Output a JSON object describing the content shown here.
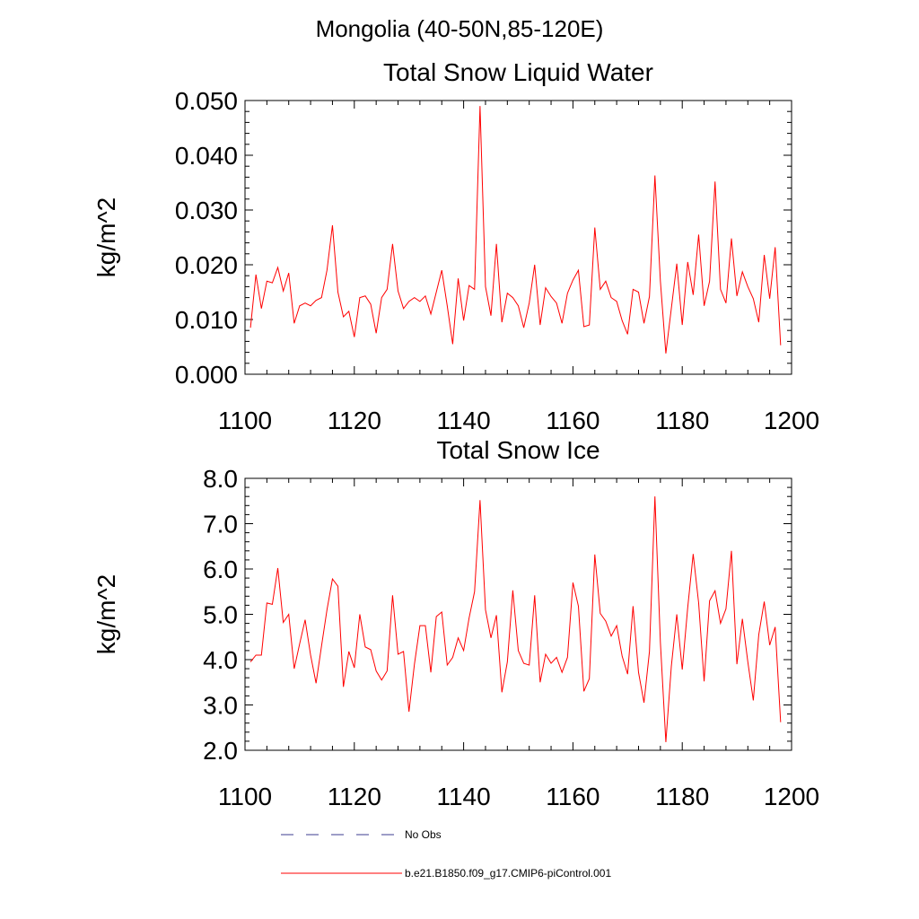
{
  "figure": {
    "main_title": "Mongolia (40-50N,85-120E)"
  },
  "legend": {
    "entries": [
      {
        "label": "No Obs",
        "color": "#3b3b8f",
        "style": "dashed"
      },
      {
        "label": "b.e21.B1850.f09_g17.CMIP6-piControl.001",
        "color": "#ff0000",
        "style": "solid"
      }
    ]
  },
  "chart_data": [
    {
      "type": "line",
      "title": "Total Snow Liquid Water",
      "xlabel": "",
      "ylabel": "kg/m^2",
      "xlim": [
        1100,
        1200
      ],
      "ylim": [
        0.0,
        0.05
      ],
      "xticks": [
        1100,
        1120,
        1140,
        1160,
        1180,
        1200
      ],
      "xtick_labels": [
        "1100",
        "1120",
        "1140",
        "1160",
        "1180",
        "1200"
      ],
      "yticks": [
        0.0,
        0.01,
        0.02,
        0.03,
        0.04,
        0.05
      ],
      "ytick_labels": [
        "0.000",
        "0.010",
        "0.020",
        "0.030",
        "0.040",
        "0.050"
      ],
      "series": [
        {
          "name": "b.e21.B1850.f09_g17.CMIP6-piControl.001",
          "color": "#ff0000",
          "x_start": 1101,
          "values": [
            0.0085,
            0.0182,
            0.012,
            0.017,
            0.0167,
            0.0195,
            0.0152,
            0.0185,
            0.0093,
            0.0125,
            0.013,
            0.0125,
            0.0135,
            0.014,
            0.019,
            0.0272,
            0.015,
            0.0105,
            0.0115,
            0.0068,
            0.014,
            0.0143,
            0.0128,
            0.0075,
            0.014,
            0.0155,
            0.0238,
            0.0152,
            0.012,
            0.0133,
            0.014,
            0.0133,
            0.0143,
            0.011,
            0.015,
            0.019,
            0.0125,
            0.0055,
            0.0175,
            0.0098,
            0.0162,
            0.0155,
            0.049,
            0.016,
            0.0107,
            0.0238,
            0.0095,
            0.0148,
            0.014,
            0.0125,
            0.0085,
            0.013,
            0.02,
            0.009,
            0.0158,
            0.0142,
            0.013,
            0.0093,
            0.0148,
            0.0172,
            0.019,
            0.0087,
            0.009,
            0.0268,
            0.0155,
            0.017,
            0.014,
            0.0133,
            0.0098,
            0.0073,
            0.0155,
            0.015,
            0.0093,
            0.0142,
            0.0363,
            0.017,
            0.0038,
            0.012,
            0.0202,
            0.009,
            0.0205,
            0.0145,
            0.0255,
            0.0125,
            0.017,
            0.0352,
            0.0155,
            0.013,
            0.0248,
            0.0143,
            0.0187,
            0.016,
            0.0138,
            0.0095,
            0.0218,
            0.0138,
            0.0232,
            0.0053
          ]
        }
      ]
    },
    {
      "type": "line",
      "title": "Total Snow Ice",
      "xlabel": "",
      "ylabel": "kg/m^2",
      "xlim": [
        1100,
        1200
      ],
      "ylim": [
        2.0,
        8.0
      ],
      "xticks": [
        1100,
        1120,
        1140,
        1160,
        1180,
        1200
      ],
      "xtick_labels": [
        "1100",
        "1120",
        "1140",
        "1160",
        "1180",
        "1200"
      ],
      "yticks": [
        2.0,
        3.0,
        4.0,
        5.0,
        6.0,
        7.0,
        8.0
      ],
      "ytick_labels": [
        "2.0",
        "3.0",
        "4.0",
        "5.0",
        "6.0",
        "7.0",
        "8.0"
      ],
      "series": [
        {
          "name": "b.e21.B1850.f09_g17.CMIP6-piControl.001",
          "color": "#ff0000",
          "x_start": 1101,
          "values": [
            3.95,
            4.1,
            4.1,
            5.25,
            5.22,
            6.02,
            4.82,
            5.0,
            3.8,
            4.35,
            4.88,
            4.1,
            3.48,
            4.3,
            5.1,
            5.78,
            5.62,
            3.4,
            4.18,
            3.82,
            5.0,
            4.28,
            4.22,
            3.75,
            3.55,
            3.75,
            5.42,
            4.12,
            4.18,
            2.85,
            3.9,
            4.75,
            4.75,
            3.72,
            4.95,
            5.05,
            3.88,
            4.05,
            4.48,
            4.2,
            4.92,
            5.5,
            7.52,
            5.1,
            4.48,
            4.98,
            3.28,
            3.95,
            5.53,
            4.2,
            3.92,
            3.88,
            5.42,
            3.5,
            4.12,
            3.92,
            4.05,
            3.72,
            4.05,
            5.7,
            5.18,
            3.3,
            3.58,
            6.32,
            5.02,
            4.85,
            4.52,
            4.75,
            4.08,
            3.68,
            5.18,
            3.72,
            3.05,
            4.18,
            7.6,
            4.38,
            2.18,
            3.85,
            5.0,
            3.78,
            5.15,
            6.33,
            5.25,
            3.52,
            5.3,
            5.52,
            4.8,
            5.12,
            6.4,
            3.9,
            4.9,
            3.95,
            3.1,
            4.55,
            5.28,
            4.32,
            4.72,
            2.62
          ]
        }
      ]
    }
  ]
}
